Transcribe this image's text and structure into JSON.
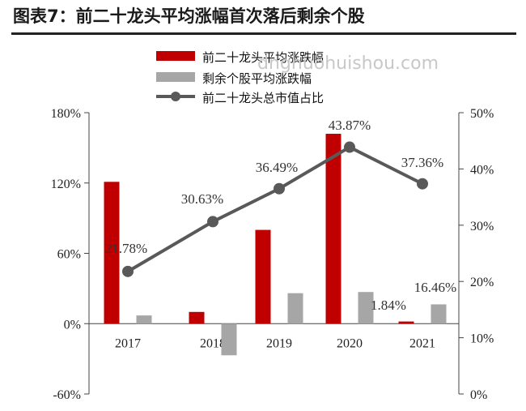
{
  "title": "图表7：前二十龙头平均涨幅首次落后剩余个股",
  "watermark": "dnghuohuishou.com",
  "chart_data": {
    "type": "bar",
    "categories": [
      "2017",
      "2018",
      "2019",
      "2020",
      "2021"
    ],
    "series": [
      {
        "name": "前二十龙头平均涨跌幅",
        "type": "bar",
        "axis": "left",
        "color": "#c00000",
        "values": [
          121,
          10,
          80,
          162,
          1.84
        ]
      },
      {
        "name": "剩余个股平均涨跌幅",
        "type": "bar",
        "axis": "left",
        "color": "#a6a6a6",
        "values": [
          7,
          -27,
          26,
          27,
          16.46
        ]
      },
      {
        "name": "前二十龙头总市值占比",
        "type": "line",
        "axis": "right",
        "color": "#595959",
        "values": [
          21.78,
          30.63,
          36.49,
          43.87,
          37.36
        ]
      }
    ],
    "y_left": {
      "range": [
        -60,
        180
      ],
      "ticks": [
        "180%",
        "120%",
        "60%",
        "0%",
        "-60%"
      ],
      "tick_values": [
        180,
        120,
        60,
        0,
        -60
      ]
    },
    "y_right": {
      "range": [
        0,
        50
      ],
      "ticks": [
        "50%",
        "40%",
        "30%",
        "20%",
        "10%",
        "0%"
      ],
      "tick_values": [
        50,
        40,
        30,
        20,
        10,
        0
      ]
    },
    "data_labels": [
      "21.78%",
      "30.63%",
      "36.49%",
      "43.87%",
      "37.36%",
      "1.84%",
      "16.46%"
    ],
    "legend_position": "top-center",
    "grid": false
  }
}
